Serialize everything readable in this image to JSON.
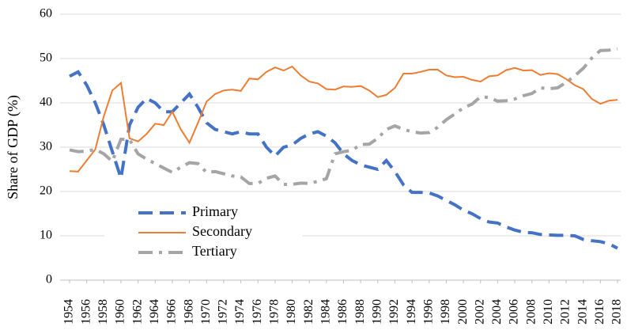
{
  "chart_data": {
    "type": "line",
    "y_label": "Share of GDP (%)",
    "x": [
      1954,
      1955,
      1956,
      1957,
      1958,
      1959,
      1960,
      1961,
      1962,
      1963,
      1964,
      1965,
      1966,
      1967,
      1968,
      1969,
      1970,
      1971,
      1972,
      1973,
      1974,
      1975,
      1976,
      1977,
      1978,
      1979,
      1980,
      1981,
      1982,
      1983,
      1984,
      1985,
      1986,
      1987,
      1988,
      1989,
      1990,
      1991,
      1992,
      1993,
      1994,
      1995,
      1996,
      1997,
      1998,
      1999,
      2000,
      2001,
      2002,
      2003,
      2004,
      2005,
      2006,
      2007,
      2008,
      2009,
      2010,
      2011,
      2012,
      2013,
      2014,
      2015,
      2016,
      2017,
      2018
    ],
    "series": [
      {
        "name": "Primary",
        "color": "#4472c4",
        "line_style": "dashed",
        "values": [
          46,
          47,
          44,
          40,
          35,
          29,
          23,
          35,
          39,
          41,
          40,
          38,
          38,
          40,
          42,
          39,
          35.5,
          34,
          33.5,
          33,
          33.5,
          33,
          33,
          30,
          28,
          30,
          30.5,
          32,
          33,
          33.5,
          32.5,
          31,
          28.5,
          27,
          26,
          25.5,
          25,
          27,
          24.5,
          21.5,
          19.8,
          19.8,
          19.7,
          19,
          18,
          17,
          15.8,
          15,
          13.9,
          13.1,
          12.9,
          12,
          11.3,
          10.8,
          10.7,
          10.3,
          10.2,
          10.1,
          10.1,
          10,
          9.2,
          8.9,
          8.7,
          8.2,
          7.2
        ]
      },
      {
        "name": "Secondary",
        "color": "#ed7d31",
        "line_style": "solid",
        "values": [
          24.6,
          24.5,
          27,
          29.5,
          37,
          42.8,
          44.5,
          32,
          31.3,
          33,
          35.3,
          35,
          38,
          34,
          31,
          35.5,
          40.3,
          42,
          42.8,
          43,
          42.7,
          45.5,
          45.3,
          47,
          48,
          47.3,
          48.2,
          46.2,
          44.8,
          44.4,
          43.1,
          43,
          43.7,
          43.6,
          43.8,
          42.8,
          41.3,
          41.8,
          43.4,
          46.6,
          46.6,
          47,
          47.5,
          47.5,
          46.2,
          45.8,
          45.9,
          45.2,
          44.8,
          46,
          46.2,
          47.4,
          47.9,
          47.3,
          47.4,
          46.3,
          46.7,
          46.5,
          45.4,
          44,
          43.1,
          40.9,
          39.8,
          40.5,
          40.7
        ]
      },
      {
        "name": "Tertiary",
        "color": "#a5a5a5",
        "line_style": "dash-dot",
        "values": [
          29.4,
          29,
          29.1,
          29.5,
          28.5,
          26.8,
          31.8,
          31.7,
          28.5,
          27.3,
          26.3,
          25.3,
          24.3,
          25.5,
          26.5,
          26.3,
          24.3,
          24.5,
          24,
          23.5,
          23.3,
          21.8,
          21.8,
          23,
          23.5,
          21.6,
          21.6,
          21.9,
          21.8,
          22.3,
          22.9,
          28.5,
          29,
          29.3,
          30.6,
          30.7,
          32,
          34,
          34.8,
          34,
          33.5,
          33.2,
          33.3,
          34.5,
          36.2,
          37.5,
          38.9,
          39.7,
          41.4,
          41.2,
          40.4,
          40.5,
          40.9,
          41.6,
          42.1,
          43.4,
          43.2,
          43.4,
          44.6,
          46.1,
          47.8,
          50.1,
          51.8,
          51.9,
          52.2
        ]
      }
    ],
    "xlim": [
      1954,
      2018
    ],
    "xticks": [
      1954,
      1956,
      1958,
      1960,
      1962,
      1964,
      1966,
      1968,
      1970,
      1972,
      1974,
      1976,
      1978,
      1980,
      1982,
      1984,
      1986,
      1988,
      1990,
      1992,
      1994,
      1996,
      1998,
      2000,
      2002,
      2004,
      2006,
      2008,
      2010,
      2012,
      2014,
      2016,
      2018
    ],
    "ylim": [
      0,
      60
    ],
    "yticks": [
      0,
      10,
      20,
      30,
      40,
      50,
      60
    ],
    "grid": true,
    "legend": "lower-left"
  }
}
